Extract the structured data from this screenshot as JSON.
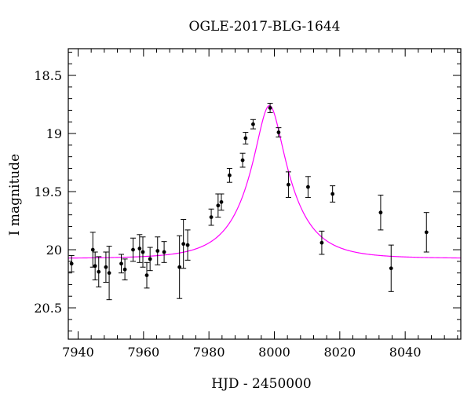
{
  "chart_data": {
    "type": "scatter",
    "title": "OGLE-2017-BLG-1644",
    "xlabel": "HJD - 2450000",
    "ylabel": "I magnitude",
    "xlim": [
      7937,
      8057
    ],
    "ylim": [
      20.77,
      18.27
    ],
    "y_inverted": true,
    "grid": false,
    "x_ticks": [
      7940,
      7960,
      7980,
      8000,
      8020,
      8040
    ],
    "y_ticks": [
      18.5,
      19,
      19.5,
      20,
      20.5
    ],
    "x_tick_labels": [
      "7940",
      "7960",
      "7980",
      "8000",
      "8020",
      "8040"
    ],
    "y_tick_labels": [
      "18.5",
      "19",
      "19.5",
      "20",
      "20.5"
    ],
    "colors": {
      "points": "#000000",
      "model": "#ff00ff"
    },
    "model": {
      "name": "",
      "baseline_mag": 20.075,
      "peak_mag": 18.76,
      "t0": 7998.5,
      "tE": 12.5
    },
    "series": [
      {
        "points": [
          {
            "x": 7938,
            "y": 20.12,
            "err": 0.07
          },
          {
            "x": 7944.5,
            "y": 20.0,
            "err": 0.15
          },
          {
            "x": 7945.2,
            "y": 20.14,
            "err": 0.12
          },
          {
            "x": 7946.3,
            "y": 20.19,
            "err": 0.13
          },
          {
            "x": 7948.5,
            "y": 20.15,
            "err": 0.13
          },
          {
            "x": 7949.5,
            "y": 20.2,
            "err": 0.23
          },
          {
            "x": 7953.2,
            "y": 20.12,
            "err": 0.08
          },
          {
            "x": 7954.3,
            "y": 20.17,
            "err": 0.09
          },
          {
            "x": 7956.8,
            "y": 20.0,
            "err": 0.1
          },
          {
            "x": 7958.8,
            "y": 19.99,
            "err": 0.12
          },
          {
            "x": 7959.8,
            "y": 20.02,
            "err": 0.13
          },
          {
            "x": 7961.0,
            "y": 20.22,
            "err": 0.11
          },
          {
            "x": 7962.0,
            "y": 20.08,
            "err": 0.1
          },
          {
            "x": 7964.3,
            "y": 20.01,
            "err": 0.12
          },
          {
            "x": 7966.3,
            "y": 20.02,
            "err": 0.09
          },
          {
            "x": 7971.0,
            "y": 20.15,
            "err": 0.27
          },
          {
            "x": 7972.2,
            "y": 19.95,
            "err": 0.21
          },
          {
            "x": 7973.5,
            "y": 19.96,
            "err": 0.13
          },
          {
            "x": 7980.7,
            "y": 19.72,
            "err": 0.07
          },
          {
            "x": 7982.8,
            "y": 19.62,
            "err": 0.1
          },
          {
            "x": 7983.8,
            "y": 19.59,
            "err": 0.07
          },
          {
            "x": 7986.3,
            "y": 19.36,
            "err": 0.06
          },
          {
            "x": 7990.3,
            "y": 19.23,
            "err": 0.06
          },
          {
            "x": 7991.2,
            "y": 19.04,
            "err": 0.05
          },
          {
            "x": 7993.5,
            "y": 18.92,
            "err": 0.04
          },
          {
            "x": 7998.7,
            "y": 18.78,
            "err": 0.04
          },
          {
            "x": 8001.3,
            "y": 18.99,
            "err": 0.04
          },
          {
            "x": 8004.3,
            "y": 19.44,
            "err": 0.11
          },
          {
            "x": 8010.3,
            "y": 19.46,
            "err": 0.09
          },
          {
            "x": 8014.5,
            "y": 19.94,
            "err": 0.1
          },
          {
            "x": 8017.8,
            "y": 19.52,
            "err": 0.07
          },
          {
            "x": 8032.5,
            "y": 19.68,
            "err": 0.15
          },
          {
            "x": 8035.7,
            "y": 20.16,
            "err": 0.2
          },
          {
            "x": 8046.5,
            "y": 19.85,
            "err": 0.17
          }
        ]
      }
    ]
  }
}
